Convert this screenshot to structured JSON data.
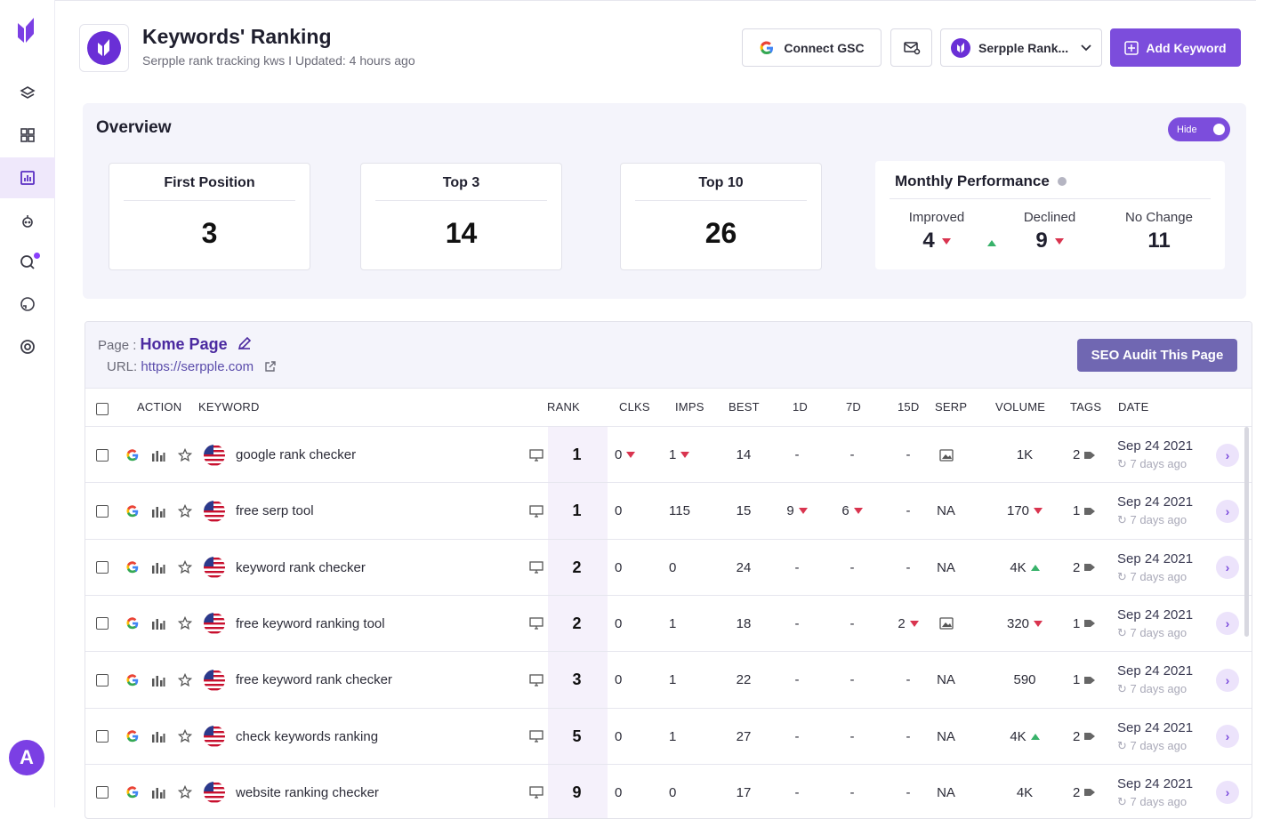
{
  "header": {
    "title": "Keywords' Ranking",
    "subtitle": "Serpple rank tracking kws I Updated: 4 hours ago",
    "connect_label": "Connect GSC",
    "project_label": "Serpple Rank...",
    "add_label": "Add Keyword"
  },
  "overview": {
    "title": "Overview",
    "toggle_label": "Hide",
    "stats": [
      {
        "label": "First Position",
        "value": "3"
      },
      {
        "label": "Top 3",
        "value": "14"
      },
      {
        "label": "Top 10",
        "value": "26"
      }
    ],
    "performance": {
      "title": "Monthly Performance",
      "improved_label": "Improved",
      "improved_value": "4",
      "declined_label": "Declined",
      "declined_value": "9",
      "nochange_label": "No Change",
      "nochange_value": "11"
    }
  },
  "page": {
    "page_prefix": "Page : ",
    "page_name": "Home Page",
    "url_prefix": "URL: ",
    "url": "https://serpple.com",
    "audit_label": "SEO Audit This Page"
  },
  "table": {
    "headers": {
      "action": "ACTION",
      "keyword": "KEYWORD",
      "rank": "RANK",
      "clks": "CLKS",
      "imps": "IMPS",
      "best": "BEST",
      "d1": "1D",
      "d7": "7D",
      "d15": "15D",
      "serp": "SERP",
      "volume": "VOLUME",
      "tags": "TAGS",
      "date": "DATE"
    },
    "rows": [
      {
        "keyword": "google rank checker",
        "rank": "1",
        "clks": "0",
        "clks_trend": "down",
        "imps": "1",
        "imps_trend": "down",
        "best": "14",
        "d1": "-",
        "d7": "-",
        "d15": "-",
        "serp": "image",
        "volume": "1K",
        "vol_trend": "",
        "tags": "2",
        "date": "Sep 24 2021",
        "ago": "7 days ago"
      },
      {
        "keyword": "free serp tool",
        "rank": "1",
        "clks": "0",
        "clks_trend": "",
        "imps": "115",
        "imps_trend": "",
        "best": "15",
        "d1": "9",
        "d1_trend": "down",
        "d7": "6",
        "d7_trend": "down",
        "d15": "-",
        "serp": "NA",
        "volume": "170",
        "vol_trend": "down",
        "tags": "1",
        "date": "Sep 24 2021",
        "ago": "7 days ago"
      },
      {
        "keyword": "keyword rank checker",
        "rank": "2",
        "clks": "0",
        "clks_trend": "",
        "imps": "0",
        "imps_trend": "",
        "best": "24",
        "d1": "-",
        "d7": "-",
        "d15": "-",
        "serp": "NA",
        "volume": "4K",
        "vol_trend": "up",
        "tags": "2",
        "date": "Sep 24 2021",
        "ago": "7 days ago"
      },
      {
        "keyword": "free keyword ranking tool",
        "rank": "2",
        "clks": "0",
        "clks_trend": "",
        "imps": "1",
        "imps_trend": "",
        "best": "18",
        "d1": "-",
        "d7": "-",
        "d15": "2",
        "d15_trend": "down",
        "serp": "image",
        "volume": "320",
        "vol_trend": "down",
        "tags": "1",
        "date": "Sep 24 2021",
        "ago": "7 days ago"
      },
      {
        "keyword": "free keyword rank checker",
        "rank": "3",
        "clks": "0",
        "clks_trend": "",
        "imps": "1",
        "imps_trend": "",
        "best": "22",
        "d1": "-",
        "d7": "-",
        "d15": "-",
        "serp": "NA",
        "volume": "590",
        "vol_trend": "",
        "tags": "1",
        "date": "Sep 24 2021",
        "ago": "7 days ago"
      },
      {
        "keyword": "check keywords ranking",
        "rank": "5",
        "clks": "0",
        "clks_trend": "",
        "imps": "1",
        "imps_trend": "",
        "best": "27",
        "d1": "-",
        "d7": "-",
        "d15": "-",
        "serp": "NA",
        "volume": "4K",
        "vol_trend": "up",
        "tags": "2",
        "date": "Sep 24 2021",
        "ago": "7 days ago"
      },
      {
        "keyword": "website ranking checker",
        "rank": "9",
        "clks": "0",
        "clks_trend": "",
        "imps": "0",
        "imps_trend": "",
        "best": "17",
        "d1": "-",
        "d7": "-",
        "d15": "-",
        "serp": "NA",
        "volume": "4K",
        "vol_trend": "",
        "tags": "2",
        "date": "Sep 24 2021",
        "ago": "7 days ago"
      }
    ]
  },
  "user": {
    "avatar_letter": "A"
  },
  "colors": {
    "accent": "#7c4ddc",
    "down": "#d9344f",
    "up": "#38b26a"
  }
}
